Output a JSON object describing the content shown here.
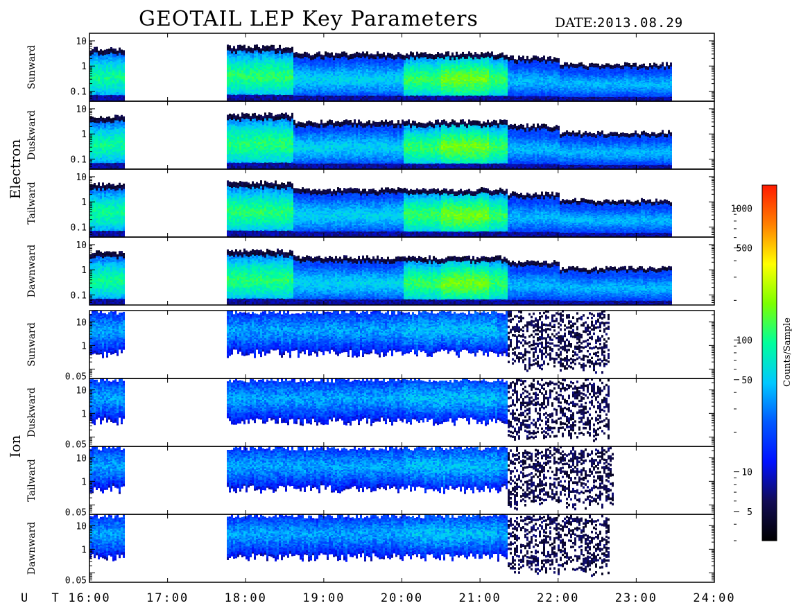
{
  "header": {
    "title": "GEOTAIL LEP Key Parameters",
    "date_label": "DATE:",
    "date_value": "2013.08.29"
  },
  "groups": [
    {
      "name": "Electron",
      "panels": [
        "Sunward",
        "Duskward",
        "Tailward",
        "Dawnward"
      ]
    },
    {
      "name": "Ion",
      "panels": [
        "Sunward",
        "Duskward",
        "Tailward",
        "Dawnward"
      ]
    }
  ],
  "colorbar": {
    "label": "Counts/Sample",
    "ticks": [
      "1000",
      "500",
      "100",
      "50",
      "10",
      "5"
    ],
    "tick_values": [
      1000,
      500,
      100,
      50,
      10,
      5
    ],
    "range": [
      3,
      1500
    ],
    "scale": "log",
    "colors": [
      "#000000",
      "#120c55",
      "#0010ff",
      "#0058ff",
      "#00c8ff",
      "#00ff9c",
      "#7cff00",
      "#ffff00",
      "#ff8000",
      "#ff1a00"
    ]
  },
  "chart_data": {
    "type": "heatmap",
    "title": "GEOTAIL LEP Key Parameters",
    "xlabel": "U T",
    "x_ticks": [
      "16:00",
      "17:00",
      "18:00",
      "19:00",
      "20:00",
      "21:00",
      "22:00",
      "23:00",
      "24:00"
    ],
    "xlim": [
      16.0,
      24.0
    ],
    "electron_y_ticks": [
      "10",
      "1",
      "0.1"
    ],
    "electron_ylim": [
      0.04,
      20
    ],
    "ion_y_ticks": [
      "10",
      "1",
      "0.05"
    ],
    "ion_ylim": [
      0.04,
      30
    ],
    "yscale": "log",
    "data_intervals": [
      [
        16.0,
        16.45
      ],
      [
        17.75,
        23.45
      ]
    ],
    "electron_panels": [
      {
        "direction": "Sunward",
        "peak_time": [
          20.3,
          21.1
        ],
        "peak_counts": 200
      },
      {
        "direction": "Duskward",
        "peak_time": [
          20.3,
          21.1
        ],
        "peak_counts": 200
      },
      {
        "direction": "Tailward",
        "peak_time": [
          20.3,
          21.1
        ],
        "peak_counts": 200
      },
      {
        "direction": "Dawnward",
        "peak_time": [
          20.3,
          21.1
        ],
        "peak_counts": 200
      }
    ],
    "ion_panels": [
      {
        "direction": "Sunward",
        "data_end": 22.65,
        "peak_counts": 40
      },
      {
        "direction": "Duskward",
        "data_end": 22.65,
        "peak_counts": 40
      },
      {
        "direction": "Tailward",
        "data_end": 22.7,
        "peak_counts": 40
      },
      {
        "direction": "Dawnward",
        "data_end": 22.65,
        "peak_counts": 40
      }
    ]
  }
}
